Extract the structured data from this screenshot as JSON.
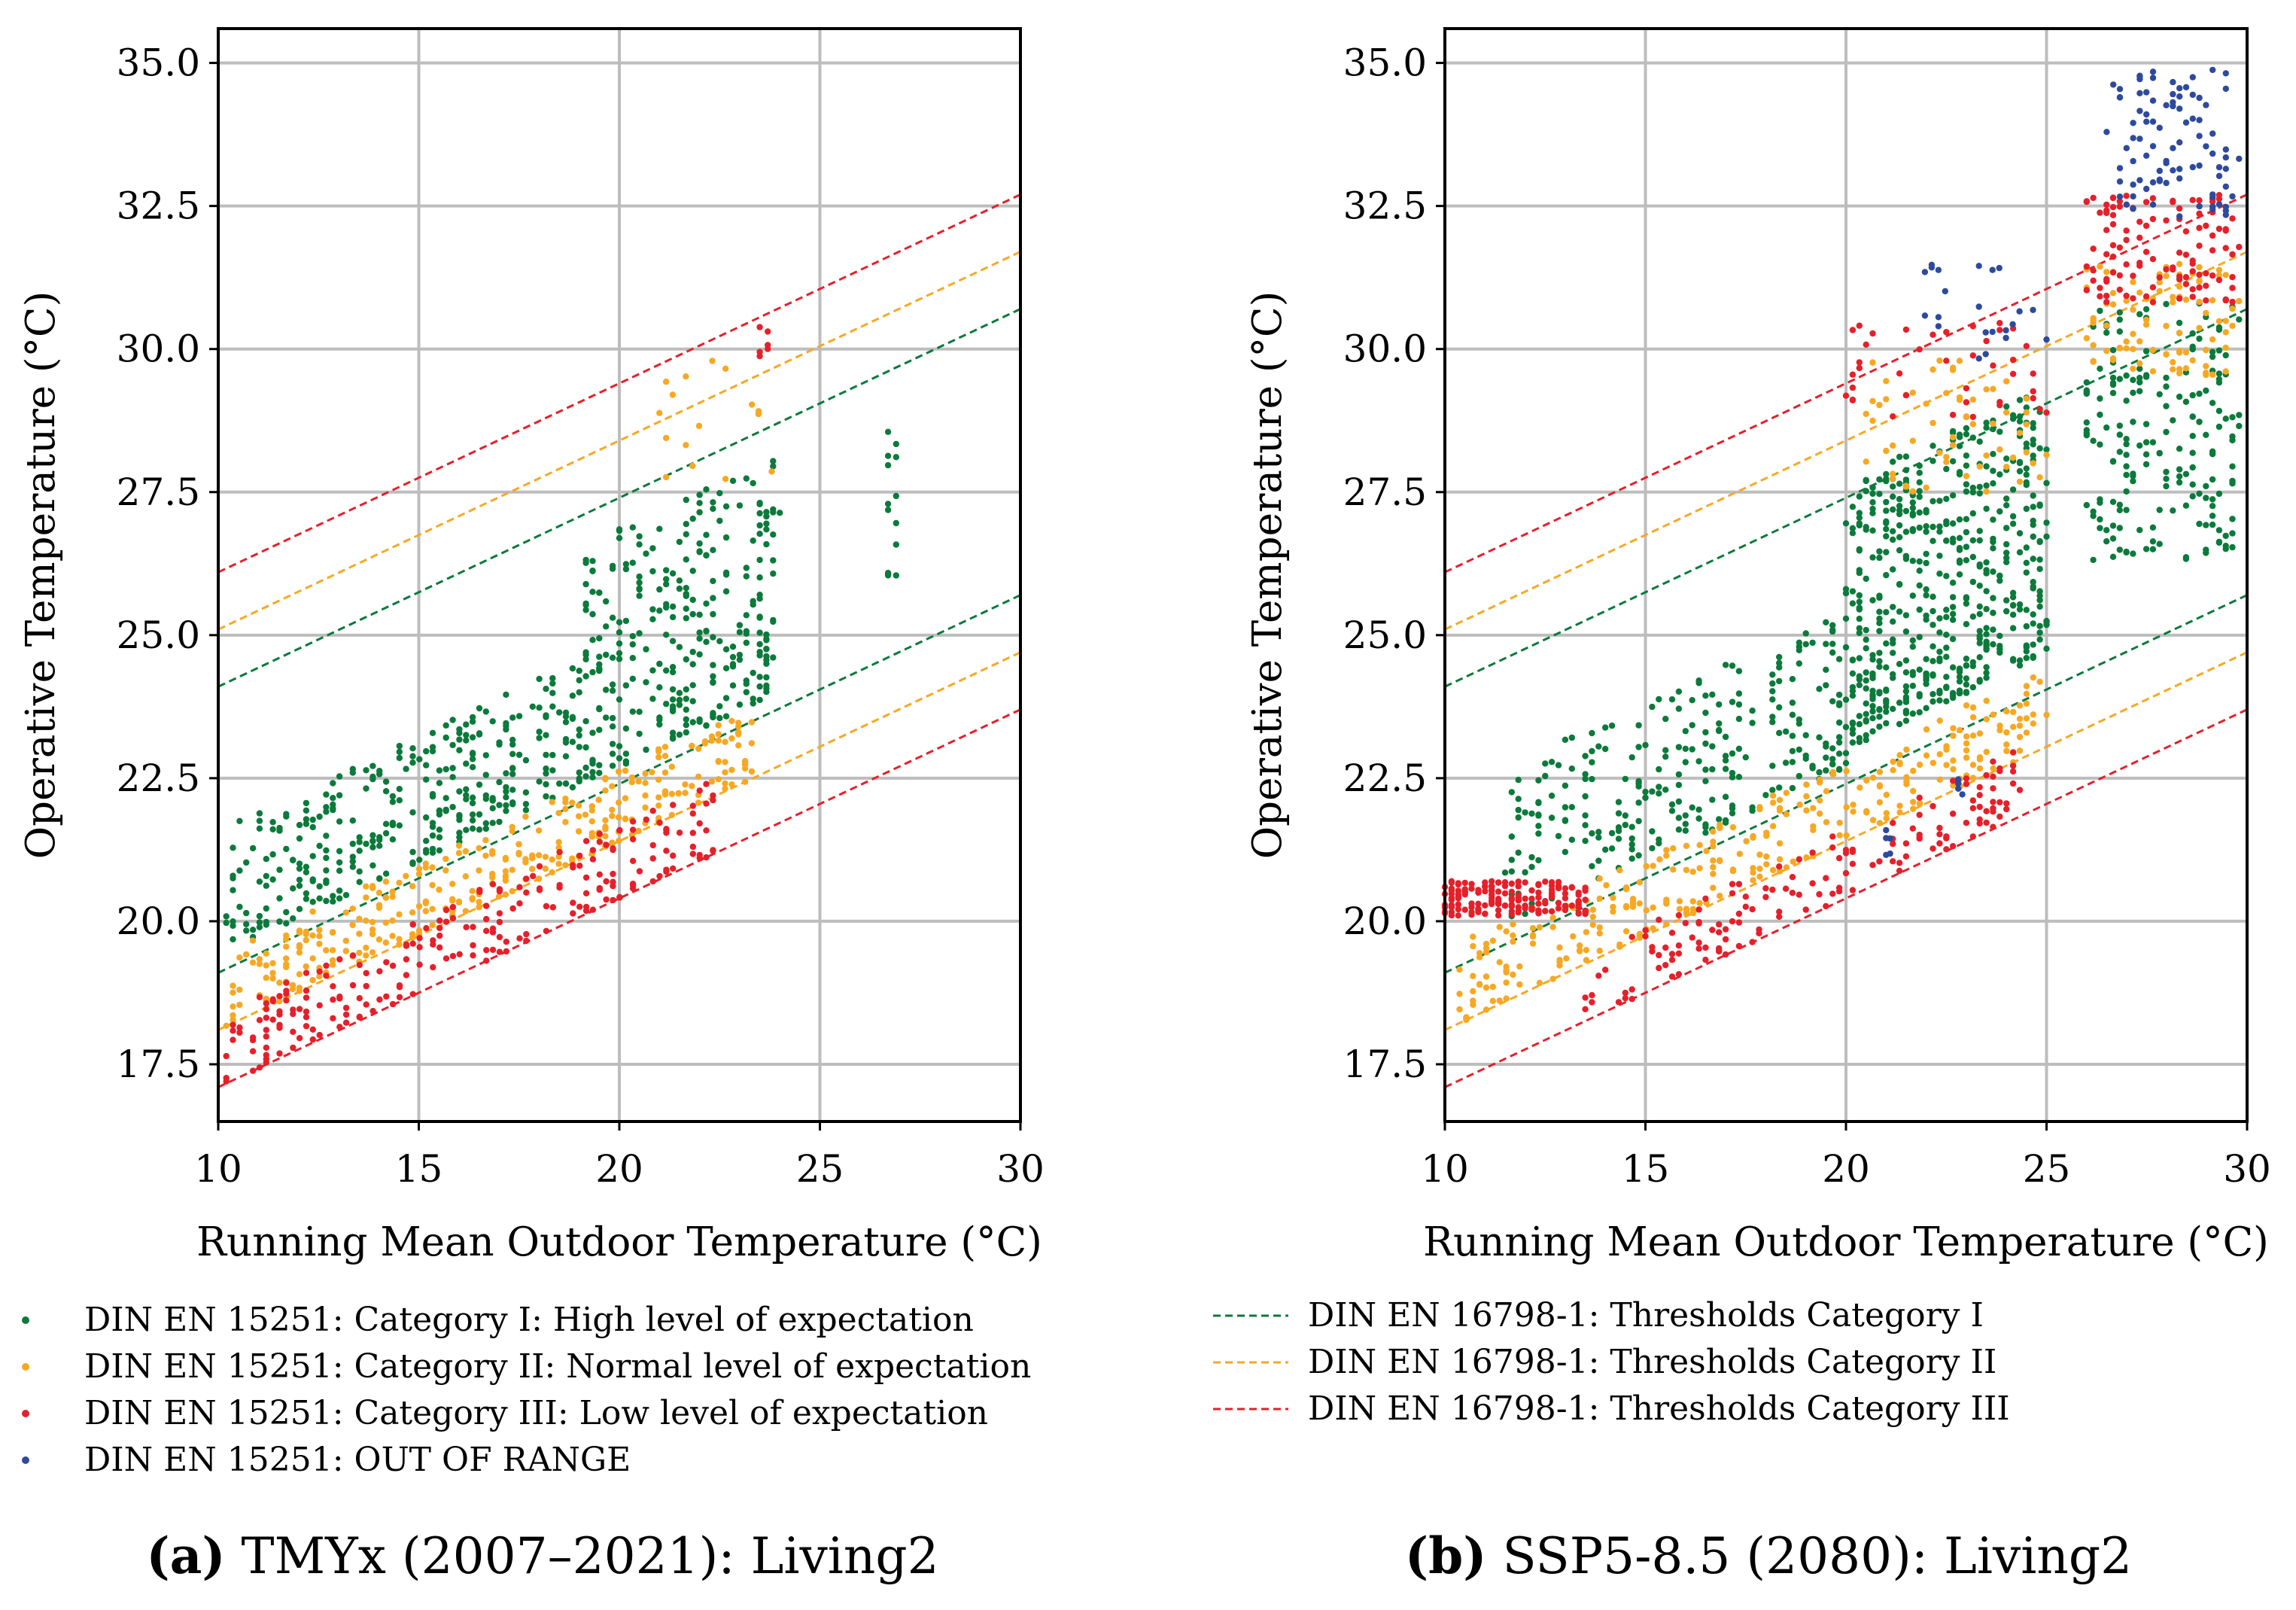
{
  "colors": {
    "cat1": "#0b7a3b",
    "cat2": "#f7a823",
    "cat3": "#e5202a",
    "out": "#2e4a9e",
    "grid": "#bdbdbd",
    "axis": "#000000"
  },
  "legend_points": [
    {
      "label": "DIN EN 15251: Category I: High level of expectation",
      "color_key": "cat1"
    },
    {
      "label": "DIN EN 15251: Category II: Normal level of expectation",
      "color_key": "cat2"
    },
    {
      "label": "DIN EN 15251: Category III: Low level of expectation",
      "color_key": "cat3"
    },
    {
      "label": "DIN EN 15251: OUT OF RANGE",
      "color_key": "out"
    }
  ],
  "legend_lines": [
    {
      "label": "DIN EN 16798-1: Thresholds Category I",
      "color_key": "cat1"
    },
    {
      "label": "DIN EN 16798-1: Thresholds Category II",
      "color_key": "cat2"
    },
    {
      "label": "DIN EN 16798-1: Thresholds Category III",
      "color_key": "cat3"
    }
  ],
  "chart_data": [
    {
      "type": "scatter",
      "panel": "a",
      "caption_label": "(a)",
      "caption_text": " TMYx (2007–2021): Living2",
      "xlabel": "Running Mean Outdoor Temperature (°C)",
      "ylabel": "Operative Temperature (°C)",
      "xlim": [
        10,
        30
      ],
      "ylim": [
        16.5,
        35.6
      ],
      "xticks": [
        10,
        15,
        20,
        25,
        30
      ],
      "yticks": [
        17.5,
        20.0,
        22.5,
        25.0,
        27.5,
        30.0,
        32.5,
        35.0
      ],
      "ytick_labels": [
        "17.5",
        "20.0",
        "22.5",
        "25.0",
        "27.5",
        "30.0",
        "32.5",
        "35.0"
      ],
      "grid": true,
      "thresholds": [
        {
          "category": "I",
          "color_key": "cat1",
          "upper": [
            [
              10,
              24.1
            ],
            [
              30,
              30.7
            ]
          ],
          "lower": [
            [
              10,
              19.1
            ],
            [
              30,
              25.7
            ]
          ]
        },
        {
          "category": "II",
          "color_key": "cat2",
          "upper": [
            [
              10,
              25.1
            ],
            [
              30,
              31.7
            ]
          ],
          "lower": [
            [
              10,
              18.1
            ],
            [
              30,
              24.7
            ]
          ]
        },
        {
          "category": "III",
          "color_key": "cat3",
          "upper": [
            [
              10,
              26.1
            ],
            [
              30,
              32.7
            ]
          ],
          "lower": [
            [
              10,
              17.1
            ],
            [
              30,
              23.7
            ]
          ]
        }
      ],
      "scatter_clusters": [
        {
          "category": "I",
          "color_key": "cat1",
          "x_range": [
            10.2,
            19.0
          ],
          "y_low_at_x": "lower_cat1+0.1",
          "y_spread": [
            0.2,
            2.4
          ],
          "count": 320
        },
        {
          "category": "I",
          "color_key": "cat1",
          "x_range": [
            19.0,
            24.0
          ],
          "y_low_at_x": "lower_cat1+0.1",
          "y_spread": [
            0.2,
            4.5
          ],
          "count": 300
        },
        {
          "category": "I",
          "color_key": "cat1",
          "x_range": [
            26.7,
            26.9
          ],
          "y_fixed": [
            26.0,
            28.7
          ],
          "count": 14
        },
        {
          "category": "II",
          "color_key": "cat2",
          "x_range": [
            10.2,
            23.3
          ],
          "y_low_at_x": "lower_cat2",
          "y_spread": [
            0.0,
            1.3
          ],
          "count": 320
        },
        {
          "category": "II",
          "color_key": "cat2",
          "x_range": [
            21.0,
            23.8
          ],
          "y_fixed": [
            27.3,
            29.8
          ],
          "count": 16
        },
        {
          "category": "III",
          "color_key": "cat3",
          "x_range": [
            10.2,
            22.5
          ],
          "y_low_at_x": "lower_cat3",
          "y_spread": [
            0.0,
            1.3
          ],
          "count": 230
        },
        {
          "category": "III",
          "color_key": "cat3",
          "x_range": [
            23.5,
            23.7
          ],
          "y_fixed": [
            29.8,
            30.4
          ],
          "count": 6
        }
      ]
    },
    {
      "type": "scatter",
      "panel": "b",
      "caption_label": "(b)",
      "caption_text": " SSP5-8.5 (2080): Living2",
      "xlabel": "Running Mean Outdoor Temperature (°C)",
      "ylabel": "Operative Temperature (°C)",
      "xlim": [
        10,
        30
      ],
      "ylim": [
        16.5,
        35.6
      ],
      "xticks": [
        10,
        15,
        20,
        25,
        30
      ],
      "yticks": [
        17.5,
        20.0,
        22.5,
        25.0,
        27.5,
        30.0,
        32.5,
        35.0
      ],
      "ytick_labels": [
        "17.5",
        "20.0",
        "22.5",
        "25.0",
        "27.5",
        "30.0",
        "32.5",
        "35.0"
      ],
      "grid": true,
      "thresholds": [
        {
          "category": "I",
          "color_key": "cat1",
          "upper": [
            [
              10,
              24.1
            ],
            [
              30,
              30.7
            ]
          ],
          "lower": [
            [
              10,
              19.1
            ],
            [
              30,
              25.7
            ]
          ]
        },
        {
          "category": "II",
          "color_key": "cat2",
          "upper": [
            [
              10,
              25.1
            ],
            [
              30,
              31.7
            ]
          ],
          "lower": [
            [
              10,
              18.1
            ],
            [
              30,
              24.7
            ]
          ]
        },
        {
          "category": "III",
          "color_key": "cat3",
          "upper": [
            [
              10,
              26.1
            ],
            [
              30,
              32.7
            ]
          ],
          "lower": [
            [
              10,
              17.1
            ],
            [
              30,
              23.7
            ]
          ]
        }
      ],
      "scatter_clusters": [
        {
          "category": "I",
          "color_key": "cat1",
          "x_range": [
            11.5,
            20.0
          ],
          "y_low_at_x": "lower_cat1+0.1",
          "y_spread": [
            0.2,
            3.0
          ],
          "count": 260
        },
        {
          "category": "I",
          "color_key": "cat1",
          "x_range": [
            20.0,
            25.0
          ],
          "y_low_at_x": "lower_cat1+0.3",
          "y_spread": [
            0.3,
            5.0
          ],
          "count": 520
        },
        {
          "category": "I",
          "color_key": "cat1",
          "x_range": [
            26.0,
            29.8
          ],
          "y_fixed": [
            26.3,
            30.8
          ],
          "count": 190
        },
        {
          "category": "II",
          "color_key": "cat2",
          "x_range": [
            10.2,
            25.0
          ],
          "y_low_at_x": "lower_cat2",
          "y_spread": [
            0.0,
            1.4
          ],
          "count": 300
        },
        {
          "category": "II",
          "color_key": "cat2",
          "x_range": [
            20.5,
            25.0
          ],
          "y_fixed": [
            27.5,
            29.8
          ],
          "count": 60
        },
        {
          "category": "II",
          "color_key": "cat2",
          "x_range": [
            26.0,
            29.8
          ],
          "y_fixed": [
            29.5,
            31.5
          ],
          "count": 90
        },
        {
          "category": "III",
          "color_key": "cat3",
          "x_range": [
            10.0,
            13.5
          ],
          "y_fixed": [
            20.1,
            20.7
          ],
          "count": 170
        },
        {
          "category": "III",
          "color_key": "cat3",
          "x_range": [
            13.5,
            24.5
          ],
          "y_low_at_x": "lower_cat3",
          "y_spread": [
            0.0,
            1.2
          ],
          "count": 150
        },
        {
          "category": "III",
          "color_key": "cat3",
          "x_range": [
            20.0,
            25.0
          ],
          "y_fixed": [
            28.8,
            30.5
          ],
          "count": 40
        },
        {
          "category": "III",
          "color_key": "cat3",
          "x_range": [
            26.0,
            29.8
          ],
          "y_fixed": [
            30.8,
            32.7
          ],
          "count": 110
        },
        {
          "category": "OUT",
          "color_key": "out",
          "x_range": [
            21.0,
            21.1
          ],
          "y_fixed": [
            21.1,
            21.6
          ],
          "count": 5
        },
        {
          "category": "OUT",
          "color_key": "out",
          "x_range": [
            22.8,
            22.9
          ],
          "y_fixed": [
            22.0,
            22.5
          ],
          "count": 5
        },
        {
          "category": "OUT",
          "color_key": "out",
          "x_range": [
            21.8,
            25.0
          ],
          "y_fixed": [
            29.8,
            31.5
          ],
          "count": 22
        },
        {
          "category": "OUT",
          "color_key": "out",
          "x_range": [
            26.5,
            29.8
          ],
          "y_fixed": [
            32.3,
            34.9
          ],
          "count": 90
        }
      ]
    }
  ]
}
